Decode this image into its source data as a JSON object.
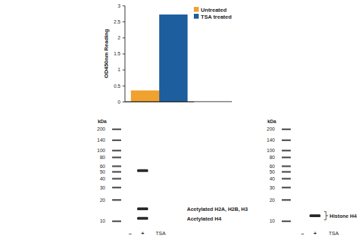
{
  "chart_data": {
    "type": "bar",
    "categories": [
      null
    ],
    "series": [
      {
        "name": "Untreated",
        "color": "#f0a12e",
        "values": [
          0.35
        ]
      },
      {
        "name": "TSA treated",
        "color": "#1d5f9e",
        "values": [
          2.72
        ]
      }
    ],
    "y_label": "OD450nm Reading",
    "ylim": [
      0,
      3
    ],
    "yticks": [
      0,
      0.5,
      1,
      1.5,
      2,
      2.5,
      3
    ],
    "legend": "upper right",
    "tick_labels": "y"
  },
  "blots": [
    {
      "unit": "kDa",
      "ladder": [
        200,
        140,
        100,
        80,
        60,
        50,
        40,
        30,
        20,
        10
      ],
      "lanes": [
        "–",
        "+"
      ],
      "treatment": "TSA",
      "bands": [
        {
          "lane": 1,
          "kda": 52
        },
        {
          "lane": 1,
          "kda": 15
        },
        {
          "lane": 1,
          "kda": 11
        }
      ],
      "annotations": [
        {
          "label": "Acetylated H2A, H2B, H3",
          "kda": 15
        },
        {
          "label": "Acetylated H4",
          "kda": 11
        }
      ]
    },
    {
      "unit": "kDa",
      "ladder": [
        200,
        140,
        100,
        80,
        60,
        50,
        40,
        30,
        20,
        10
      ],
      "lanes": [
        "–",
        "+"
      ],
      "treatment": "TSA",
      "bands": [
        {
          "lane": 1,
          "kda": 12
        }
      ],
      "annotations": [
        {
          "label": "Histone H4",
          "kda": 12
        }
      ]
    }
  ]
}
